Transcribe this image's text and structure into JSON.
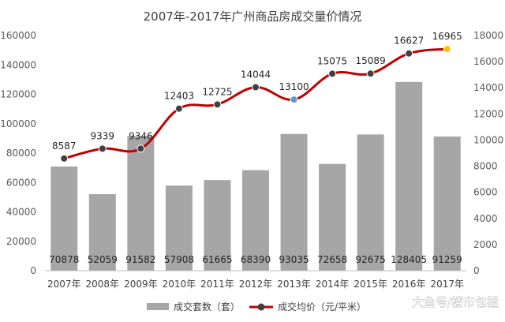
{
  "chart_data": {
    "type": "bar",
    "title": "2007年-2017年广州商品房成交量价情况",
    "categories": [
      "2007年",
      "2008年",
      "2009年",
      "2010年",
      "2011年",
      "2012年",
      "2013年",
      "2014年",
      "2015年",
      "2016年",
      "2017年"
    ],
    "series": [
      {
        "name": "成交套数（套）",
        "type": "bar",
        "axis": "left",
        "values": [
          70878,
          52059,
          91582,
          57908,
          61665,
          68390,
          93035,
          72658,
          92675,
          128405,
          91259
        ],
        "color": "#a6a6a6"
      },
      {
        "name": "成交均价（元/平米）",
        "type": "line",
        "axis": "right",
        "values": [
          8587,
          9339,
          9346,
          12403,
          12725,
          14044,
          13100,
          15075,
          15089,
          16627,
          16965
        ],
        "color": "#c00000",
        "marker_color": "#404040",
        "highlight_markers": {
          "2013年": "#5b9bd5",
          "2017年": "#ffc000"
        }
      }
    ],
    "y_left": {
      "ylim": [
        0,
        160000
      ],
      "ticks": [
        0,
        20000,
        40000,
        60000,
        80000,
        100000,
        120000,
        140000,
        160000
      ]
    },
    "y_right": {
      "ylim": [
        0,
        18000
      ],
      "ticks": [
        0,
        2000,
        4000,
        6000,
        8000,
        10000,
        12000,
        14000,
        16000,
        18000
      ]
    },
    "legend_position": "bottom",
    "grid": false
  },
  "watermark": "大鱼号/楼市包拯"
}
